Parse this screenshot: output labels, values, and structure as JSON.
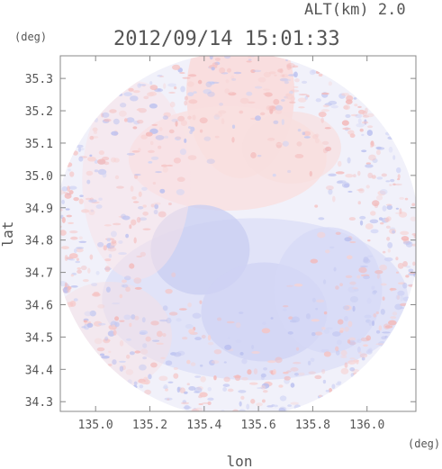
{
  "header": {
    "altitude": "ALT(km) 2.0",
    "timestamp": "2012/09/14 15:01:33"
  },
  "chart_data": {
    "type": "heatmap",
    "title": "2012/09/14 15:01:33",
    "subtitle": "ALT(km) 2.0",
    "xlabel": "lon",
    "ylabel": "lat",
    "x_unit": "(deg)",
    "y_unit": "(deg)",
    "xlim": [
      134.87,
      136.18
    ],
    "ylim": [
      34.27,
      35.37
    ],
    "x_ticks": [
      "135.0",
      "135.2",
      "135.4",
      "135.6",
      "135.8",
      "136.0"
    ],
    "y_ticks": [
      "34.3",
      "34.4",
      "34.5",
      "34.6",
      "34.7",
      "34.8",
      "34.9",
      "35.0",
      "35.1",
      "35.2",
      "35.3"
    ],
    "grid": false,
    "data_region": {
      "shape": "circle",
      "center_lon": 135.52,
      "center_lat": 34.815
    },
    "colors": {
      "positive": "#f6c9c9",
      "negative": "#c8ccf3",
      "neutral": "#f1f1fa",
      "axis": "#888888",
      "text": "#555555"
    }
  }
}
